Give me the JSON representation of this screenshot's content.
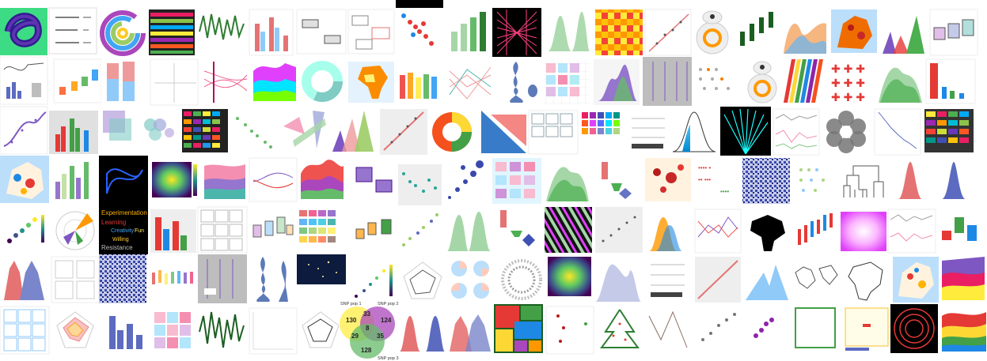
{
  "gallery": {
    "wordcloud": [
      "Experimentation",
      "Creativity",
      "Fun",
      "Willing",
      "Resistance",
      "Learning"
    ],
    "venn": {
      "set_labels": [
        "SNP pop 1",
        "SNP pop 2",
        "SNP pop 3"
      ],
      "counts": [
        "130",
        "33",
        "124",
        "8",
        "29",
        "35",
        "128"
      ]
    },
    "colors": {
      "viridis": [
        "#440154",
        "#3b528b",
        "#21918c",
        "#5ec962",
        "#fde725"
      ],
      "accent_red": "#e53935",
      "accent_green": "#4caf50",
      "accent_blue": "#2196f3",
      "accent_purple": "#7e57c2",
      "accent_orange": "#ff9800"
    }
  }
}
